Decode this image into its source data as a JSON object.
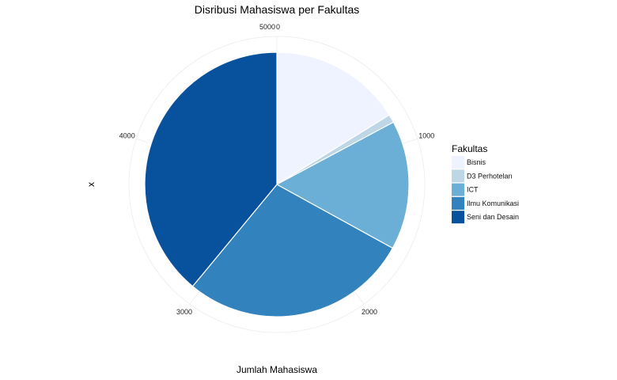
{
  "chart_data": {
    "type": "pie",
    "title": "Disribusi Mahasiswa per Fakultas",
    "xlabel": "Jumlah Mahasiswa",
    "ylabel": "x",
    "legend_title": "Fakultas",
    "legend_position": "right",
    "grid": true,
    "ticks": [
      "0",
      "1000",
      "2000",
      "3000",
      "4000",
      "5000"
    ],
    "total": 5000,
    "slices": [
      {
        "name": "Bisnis",
        "value": 810,
        "color": "#eff3ff"
      },
      {
        "name": "D3 Perhotelan",
        "value": 50,
        "color": "#bdd7e7"
      },
      {
        "name": "ICT",
        "value": 790,
        "color": "#6baed6"
      },
      {
        "name": "Ilmu Komunikasi",
        "value": 1400,
        "color": "#3182bd"
      },
      {
        "name": "Seni dan Desain",
        "value": 1950,
        "color": "#08519c"
      }
    ]
  }
}
